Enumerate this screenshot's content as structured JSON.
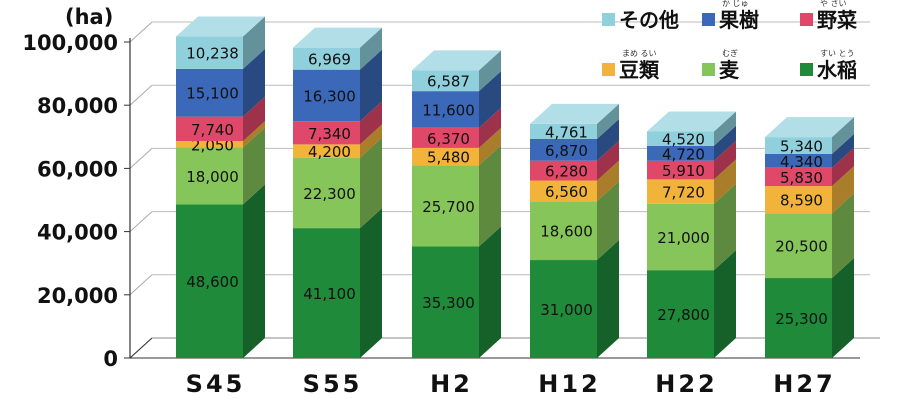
{
  "chart_data": {
    "type": "bar",
    "stacked": true,
    "categories": [
      "S45",
      "S55",
      "H2",
      "H12",
      "H22",
      "H27"
    ],
    "unit_label": "(ha)",
    "ylim": [
      0,
      100000
    ],
    "y_ticks": [
      "0",
      "20,000",
      "40,000",
      "60,000",
      "80,000",
      "100,000"
    ],
    "grid": true,
    "legend_position": "top-right",
    "series": [
      {
        "name": "水稲",
        "ruby": "すい とう",
        "color": "#1f8a3a",
        "values": [
          48600,
          41100,
          35300,
          31000,
          27800,
          25300
        ],
        "labels": [
          "48,600",
          "41,100",
          "35,300",
          "31,000",
          "27,800",
          "25,300"
        ]
      },
      {
        "name": "麦",
        "ruby": "むぎ",
        "color": "#86c55a",
        "values": [
          18000,
          22300,
          25700,
          18600,
          21000,
          20500
        ],
        "labels": [
          "18,000",
          "22,300",
          "25,700",
          "18,600",
          "21,000",
          "20,500"
        ]
      },
      {
        "name": "豆類",
        "ruby": "まめ るい",
        "color": "#f2b33a",
        "values": [
          2050,
          4200,
          5480,
          6560,
          7720,
          8590
        ],
        "labels": [
          "2,050",
          "4,200",
          "5,480",
          "6,560",
          "7,720",
          "8,590"
        ]
      },
      {
        "name": "野菜",
        "ruby": "や さい",
        "color": "#e0486a",
        "values": [
          7740,
          7340,
          6370,
          6280,
          5910,
          5830
        ],
        "labels": [
          "7,740",
          "7,340",
          "6,370",
          "6,280",
          "5,910",
          "5,830"
        ]
      },
      {
        "name": "果樹",
        "ruby": "か じゅ",
        "color": "#3b68b8",
        "values": [
          15100,
          16300,
          11600,
          6870,
          4720,
          4340
        ],
        "labels": [
          "15,100",
          "16,300",
          "11,600",
          "6,870",
          "4,720",
          "4,340"
        ]
      },
      {
        "name": "その他",
        "ruby": "",
        "color": "#8fd0dc",
        "values": [
          10238,
          6969,
          6587,
          4761,
          4520,
          5340
        ],
        "labels": [
          "10,238",
          "6,969",
          "6,587",
          "4,761",
          "4,520",
          "5,340"
        ]
      }
    ]
  }
}
